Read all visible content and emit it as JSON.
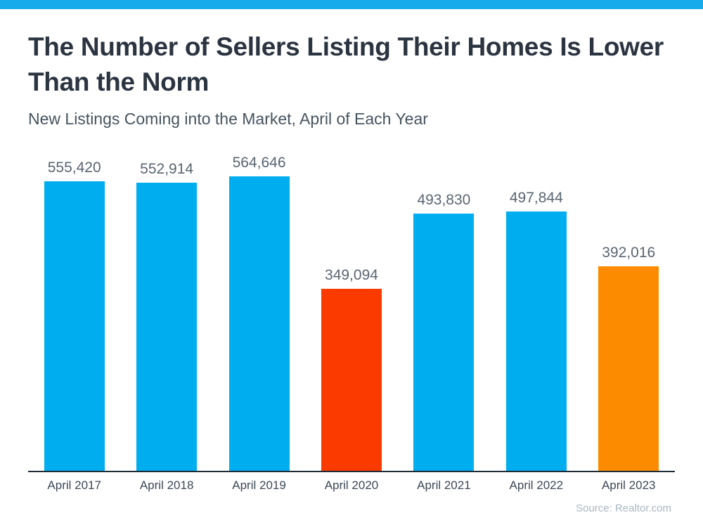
{
  "theme": {
    "stripe_color": "#18ABEC",
    "title_color": "#2B3440",
    "subtitle_color": "#46545F",
    "value_label_color": "#5A6572",
    "axis_color": "#1F2C38",
    "xlabel_color": "#3D4856",
    "source_color": "#AAB7C1"
  },
  "chart_data": {
    "type": "bar",
    "title": "The Number of Sellers Listing Their Homes Is Lower Than the Norm",
    "subtitle": "New Listings Coming into the Market, April of Each Year",
    "categories": [
      "April 2017",
      "April 2018",
      "April 2019",
      "April 2020",
      "April 2021",
      "April 2022",
      "April 2023"
    ],
    "values": [
      555420,
      552914,
      564646,
      349094,
      493830,
      497844,
      392016
    ],
    "value_labels": [
      "555,420",
      "552,914",
      "564,646",
      "349,094",
      "493,830",
      "497,844",
      "392,016"
    ],
    "bar_colors": [
      "#00ADEE",
      "#00ADEE",
      "#00ADEE",
      "#FB3A00",
      "#00ADEE",
      "#00ADEE",
      "#FC8B00"
    ],
    "xlabel": "",
    "ylabel": "",
    "ylim": [
      0,
      564646
    ],
    "grid": false,
    "legend": false,
    "source": "Source: Realtor.com"
  }
}
